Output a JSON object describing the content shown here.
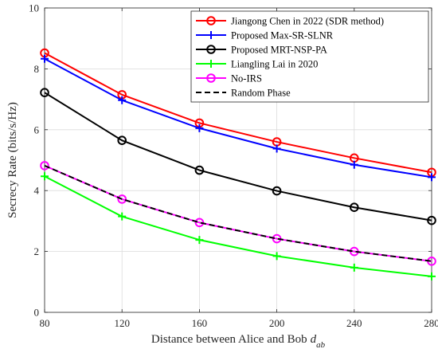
{
  "chart_data": {
    "type": "line",
    "title": "",
    "xlabel": "Distance between Alice and Bob",
    "xlabel_var": "d",
    "xlabel_sub": "ab",
    "ylabel": "Secrecy Rate (bits/s/Hz)",
    "xlim": [
      80,
      280
    ],
    "ylim": [
      0,
      10
    ],
    "xticks": [
      "80",
      "120",
      "160",
      "200",
      "240",
      "280"
    ],
    "yticks": [
      "0",
      "2",
      "4",
      "6",
      "8",
      "10"
    ],
    "grid": true,
    "legend_position": "top-right",
    "x": [
      80,
      120,
      160,
      200,
      240,
      280
    ],
    "series": [
      {
        "name": "Jiangong Chen in 2022 (SDR method)",
        "values": [
          8.52,
          7.15,
          6.22,
          5.6,
          5.07,
          4.6
        ],
        "color": "#ff0000",
        "marker": "circle",
        "dash": "solid"
      },
      {
        "name": "Proposed Max-SR-SLNR",
        "values": [
          8.33,
          6.97,
          6.05,
          5.38,
          4.85,
          4.44
        ],
        "color": "#0000ff",
        "marker": "plus",
        "dash": "solid"
      },
      {
        "name": "Proposed MRT-NSP-PA",
        "values": [
          7.22,
          5.65,
          4.67,
          3.99,
          3.45,
          3.02
        ],
        "color": "#000000",
        "marker": "circle",
        "dash": "solid"
      },
      {
        "name": "Liangling Lai in 2020",
        "values": [
          4.47,
          3.15,
          2.38,
          1.85,
          1.47,
          1.18
        ],
        "color": "#00ff00",
        "marker": "plus",
        "dash": "solid"
      },
      {
        "name": "No-IRS",
        "values": [
          4.82,
          3.72,
          2.95,
          2.42,
          2.0,
          1.68
        ],
        "color": "#ff00ff",
        "marker": "circle",
        "dash": "solid"
      },
      {
        "name": "Random Phase",
        "values": [
          4.82,
          3.72,
          2.95,
          2.42,
          2.0,
          1.68
        ],
        "color": "#000000",
        "marker": "none",
        "dash": "dashed"
      }
    ]
  }
}
